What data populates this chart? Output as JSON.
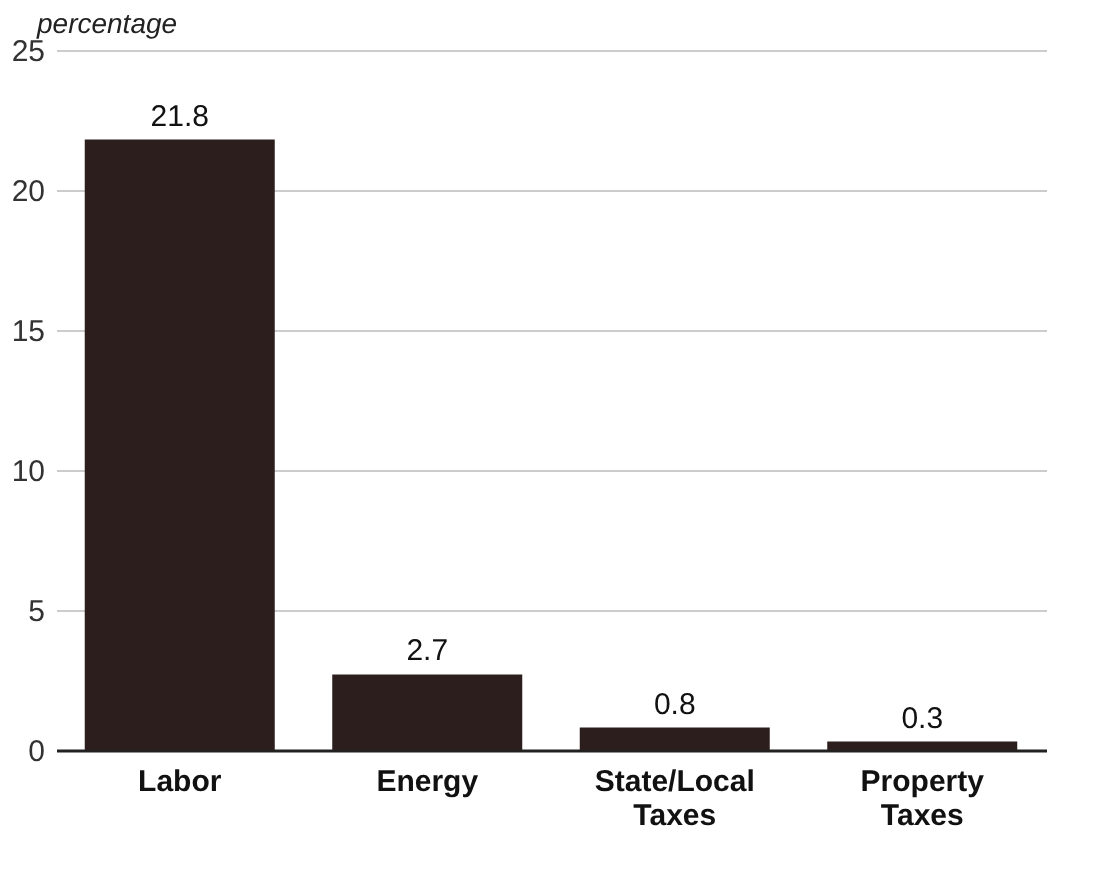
{
  "chart_data": {
    "type": "bar",
    "ylabel": "percentage",
    "categories": [
      "Labor",
      "Energy",
      "State/Local Taxes",
      "Property Taxes"
    ],
    "values": [
      21.8,
      2.7,
      0.8,
      0.3
    ],
    "color": "#2b1e1c",
    "ylim": [
      0,
      25
    ],
    "yticks": [
      0,
      5,
      10,
      15,
      20,
      25
    ],
    "grid": "y",
    "data_labels": true
  }
}
